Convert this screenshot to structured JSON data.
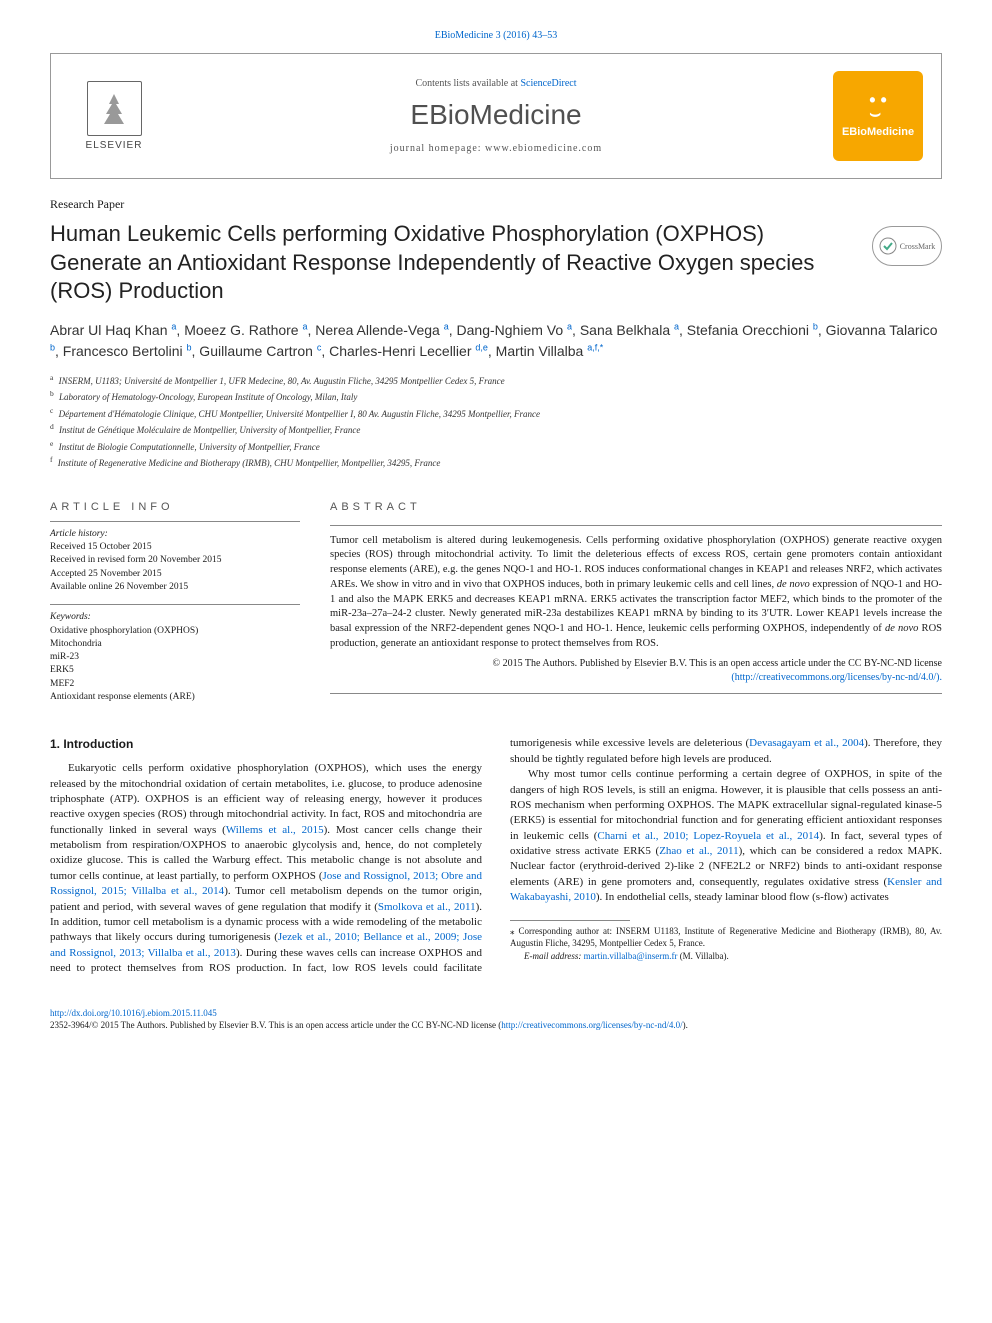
{
  "journal_ref": {
    "text": "EBioMedicine 3 (2016) 43–53",
    "link_text": "EBioMedicine 3 (2016) 43–53"
  },
  "header": {
    "elsevier": "ELSEVIER",
    "contents_prefix": "Contents lists available at ",
    "contents_link": "ScienceDirect",
    "journal": "EBioMedicine",
    "homepage_prefix": "journal homepage: ",
    "homepage": "www.ebiomedicine.com",
    "ebio_label": "EBioMedicine"
  },
  "paper_type": "Research Paper",
  "title": "Human Leukemic Cells performing Oxidative Phosphorylation (OXPHOS) Generate an Antioxidant Response Independently of Reactive Oxygen species (ROS) Production",
  "crossmark": "CrossMark",
  "authors_html": "Abrar Ul Haq Khan <sup>a</sup>, Moeez G. Rathore <sup>a</sup>, Nerea Allende-Vega <sup>a</sup>, Dang-Nghiem Vo <sup>a</sup>, Sana Belkhala <sup>a</sup>, Stefania Orecchioni <sup>b</sup>, Giovanna Talarico <sup>b</sup>, Francesco Bertolini <sup>b</sup>, Guillaume Cartron <sup>c</sup>, Charles-Henri Lecellier <sup>d,e</sup>, Martin Villalba <sup>a,f,*</sup>",
  "affiliations": [
    {
      "sup": "a",
      "text": "INSERM, U1183; Université de Montpellier 1, UFR Medecine, 80, Av. Augustin Fliche, 34295 Montpellier Cedex 5, France"
    },
    {
      "sup": "b",
      "text": "Laboratory of Hematology-Oncology, European Institute of Oncology, Milan, Italy"
    },
    {
      "sup": "c",
      "text": "Département d'Hématologie Clinique, CHU Montpellier, Université Montpellier I, 80 Av. Augustin Fliche, 34295 Montpellier, France"
    },
    {
      "sup": "d",
      "text": "Institut de Génétique Moléculaire de Montpellier, University of Montpellier, France"
    },
    {
      "sup": "e",
      "text": "Institut de Biologie Computationnelle, University of Montpellier, France"
    },
    {
      "sup": "f",
      "text": "Institute of Regenerative Medicine and Biotherapy (IRMB), CHU Montpellier, Montpellier, 34295, France"
    }
  ],
  "info_head": "article info",
  "abs_head": "abstract",
  "history": {
    "label": "Article history:",
    "received": "Received 15 October 2015",
    "revised": "Received in revised form 20 November 2015",
    "accepted": "Accepted 25 November 2015",
    "online": "Available online 26 November 2015"
  },
  "keywords": {
    "label": "Keywords:",
    "items": [
      "Oxidative phosphorylation (OXPHOS)",
      "Mitochondria",
      "miR-23",
      "ERK5",
      "MEF2",
      "Antioxidant response elements (ARE)"
    ]
  },
  "abstract": "Tumor cell metabolism is altered during leukemogenesis. Cells performing oxidative phosphorylation (OXPHOS) generate reactive oxygen species (ROS) through mitochondrial activity. To limit the deleterious effects of excess ROS, certain gene promoters contain antioxidant response elements (ARE), e.g. the genes NQO-1 and HO-1. ROS induces conformational changes in KEAP1 and releases NRF2, which activates AREs. We show in vitro and in vivo that OXPHOS induces, both in primary leukemic cells and cell lines, de novo expression of NQO-1 and HO-1 and also the MAPK ERK5 and decreases KEAP1 mRNA. ERK5 activates the transcription factor MEF2, which binds to the promoter of the miR-23a–27a–24-2 cluster. Newly generated miR-23a destabilizes KEAP1 mRNA by binding to its 3′UTR. Lower KEAP1 levels increase the basal expression of the NRF2-dependent genes NQO-1 and HO-1. Hence, leukemic cells performing OXPHOS, independently of de novo ROS production, generate an antioxidant response to protect themselves from ROS.",
  "copyright": {
    "line1": "© 2015 The Authors. Published by Elsevier B.V. This is an open access article under the CC BY-NC-ND license",
    "link": "(http://creativecommons.org/licenses/by-nc-nd/4.0/)."
  },
  "section1_head": "1. Introduction",
  "intro_p1_pre": "Eukaryotic cells perform oxidative phosphorylation (OXPHOS), which uses the energy released by the mitochondrial oxidation of certain metabolites, i.e. glucose, to produce adenosine triphosphate (ATP). OXPHOS is an efficient way of releasing energy, however it produces reactive oxygen species (ROS) through mitochondrial activity. In fact, ROS and mitochondria are functionally linked in several ways (",
  "intro_p1_link1": "Willems et al., 2015",
  "intro_p1_mid1": "). Most cancer cells change their metabolism from respiration/OXPHOS to anaerobic glycolysis and, hence, do not completely oxidize glucose. This is called the Warburg effect. This metabolic change is not absolute and tumor cells continue, at least partially, to perform OXPHOS (",
  "intro_p1_link2": "Jose and Rossignol, 2013; Obre and Rossignol, 2015; Villalba et al., 2014",
  "intro_p1_mid2": "). Tumor cell metabolism depends on the tumor origin, patient and period, with several waves of gene regulation that modify it (",
  "intro_p1_link3": "Smolkova et al., 2011",
  "intro_p1_mid3": "). In addition, tumor cell metabolism is a dynamic process with a wide remodeling of the metabolic pathways that likely occurs during tumorigenesis (",
  "intro_p1_link4": "Jezek et al., 2010; Bellance et al., 2009; Jose and Rossignol, 2013; Villalba et al., 2013",
  "intro_p1_mid4": "). During these waves cells can increase OXPHOS and need to protect themselves from ROS production. In fact, low ROS levels could facilitate tumorigenesis while excessive levels are deleterious (",
  "intro_p1_link5": "Devasagayam et al., 2004",
  "intro_p1_post": "). Therefore, they should be tightly regulated before high levels are produced.",
  "intro_p2_pre": "Why most tumor cells continue performing a certain degree of OXPHOS, in spite of the dangers of high ROS levels, is still an enigma. However, it is plausible that cells possess an anti-ROS mechanism when performing OXPHOS. The MAPK extracellular signal-regulated kinase-5 (ERK5) is essential for mitochondrial function and for generating efficient antioxidant responses in leukemic cells (",
  "intro_p2_link1": "Charni et al., 2010; Lopez-Royuela et al., 2014",
  "intro_p2_mid1": "). In fact, several types of oxidative stress activate ERK5 (",
  "intro_p2_link2": "Zhao et al., 2011",
  "intro_p2_mid2": "), which can be considered a redox MAPK. Nuclear factor (erythroid-derived 2)-like 2 (NFE2L2 or NRF2) binds to anti-oxidant response elements (ARE) in gene promoters and, consequently, regulates oxidative stress (",
  "intro_p2_link3": "Kensler and Wakabayashi, 2010",
  "intro_p2_post": "). In endothelial cells, steady laminar blood flow (s-flow) activates",
  "corr": {
    "star": "⁎ ",
    "text": "Corresponding author at: INSERM U1183, Institute of Regenerative Medicine and Biotherapy (IRMB), 80, Av. Augustin Fliche, 34295, Montpellier Cedex 5, France.",
    "email_label": "E-mail address: ",
    "email": "martin.villalba@inserm.fr",
    "email_suffix": " (M. Villalba)."
  },
  "footer": {
    "doi": "http://dx.doi.org/10.1016/j.ebiom.2015.11.045",
    "line": "2352-3964/© 2015 The Authors. Published by Elsevier B.V. This is an open access article under the CC BY-NC-ND license (",
    "link": "http://creativecommons.org/licenses/by-nc-nd/4.0/",
    "post": ")."
  },
  "colors": {
    "link": "#0066cc",
    "accent": "#f7a700",
    "text": "#1a1a1a",
    "rule": "#888888"
  }
}
